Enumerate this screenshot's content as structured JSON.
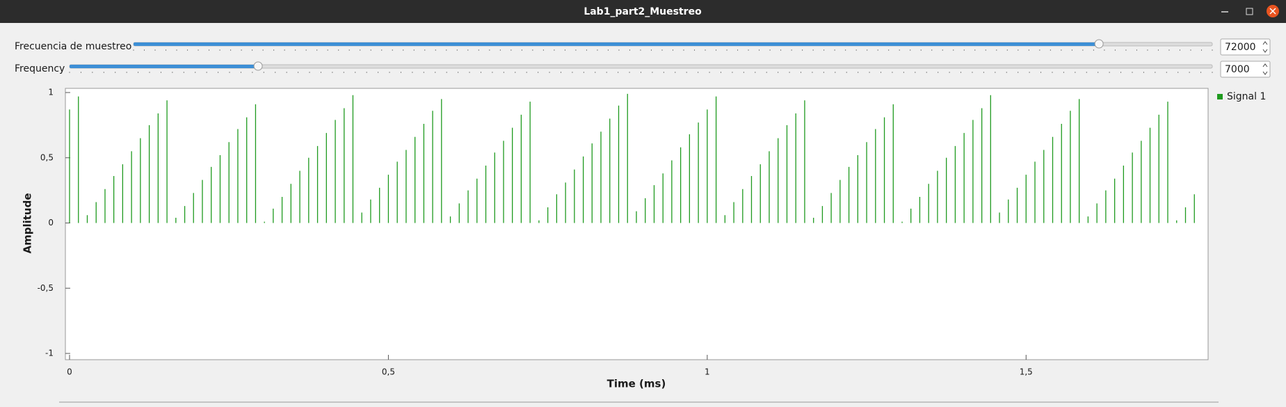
{
  "window": {
    "title": "Lab1_part2_Muestreo"
  },
  "controls": [
    {
      "label": "Frecuencia de muestreo",
      "value": 72000
    },
    {
      "label": "Frequency",
      "value": 7000
    }
  ],
  "chart_data": {
    "type": "stem",
    "xlabel": "Time (ms)",
    "ylabel": "Amplitude",
    "x": [
      0,
      0.0139,
      0.0278,
      0.0417,
      0.0556,
      0.0694,
      0.0833,
      0.0972,
      0.1111,
      0.125,
      0.1389,
      0.1528,
      0.1667,
      0.1806,
      0.1944,
      0.2083,
      0.2222,
      0.2361,
      0.25,
      0.2639,
      0.2778,
      0.2917,
      0.3056,
      0.3194,
      0.3333,
      0.3472,
      0.3611,
      0.375,
      0.3889,
      0.4028,
      0.4167,
      0.4306,
      0.4444,
      0.4583,
      0.4722,
      0.4861,
      0.5,
      0.5139,
      0.5278,
      0.5417,
      0.5556,
      0.5694,
      0.5833,
      0.5972,
      0.6111,
      0.625,
      0.6389,
      0.6528,
      0.6667,
      0.6806,
      0.6944,
      0.7083,
      0.7222,
      0.7361,
      0.75,
      0.7639,
      0.7778,
      0.7917,
      0.8056,
      0.8194,
      0.8333,
      0.8472,
      0.8611,
      0.875,
      0.8889,
      0.9028,
      0.9167,
      0.9306,
      0.9444,
      0.9583,
      0.9722,
      0.9861,
      1,
      1.0139,
      1.0278,
      1.0417,
      1.0556,
      1.0694,
      1.0833,
      1.0972,
      1.1111,
      1.125,
      1.1389,
      1.1528,
      1.1667,
      1.1806,
      1.1944,
      1.2083,
      1.2222,
      1.2361,
      1.25,
      1.2639,
      1.2778,
      1.2917,
      1.3056,
      1.3194,
      1.3333,
      1.3472,
      1.3611,
      1.375,
      1.3889,
      1.4028,
      1.4167,
      1.4306,
      1.4444,
      1.4583,
      1.4722,
      1.4861,
      1.5,
      1.5139,
      1.5278,
      1.5417,
      1.5556,
      1.5694,
      1.5833,
      1.5972,
      1.6111,
      1.625,
      1.6389,
      1.6528,
      1.6667,
      1.6806,
      1.6944,
      1.7083,
      1.7222,
      1.7361,
      1.75,
      1.7639
    ],
    "series": [
      {
        "name": "Signal 1",
        "color": "#1e9a1e",
        "values": [
          0.87,
          0.97,
          0.06,
          0.16,
          0.26,
          0.36,
          0.45,
          0.55,
          0.65,
          0.75,
          0.84,
          0.94,
          0.04,
          0.13,
          0.23,
          0.33,
          0.43,
          0.52,
          0.62,
          0.72,
          0.81,
          0.91,
          0.01,
          0.11,
          0.2,
          0.3,
          0.4,
          0.5,
          0.59,
          0.69,
          0.79,
          0.88,
          0.98,
          0.08,
          0.18,
          0.27,
          0.37,
          0.47,
          0.56,
          0.66,
          0.76,
          0.86,
          0.95,
          0.05,
          0.15,
          0.25,
          0.34,
          0.44,
          0.54,
          0.63,
          0.73,
          0.83,
          0.93,
          0.02,
          0.12,
          0.22,
          0.31,
          0.41,
          0.51,
          0.61,
          0.7,
          0.8,
          0.9,
          0.99,
          0.09,
          0.19,
          0.29,
          0.38,
          0.48,
          0.58,
          0.68,
          0.77,
          0.87,
          0.97,
          0.06,
          0.16,
          0.26,
          0.36,
          0.45,
          0.55,
          0.65,
          0.75,
          0.84,
          0.94,
          0.04,
          0.13,
          0.23,
          0.33,
          0.43,
          0.52,
          0.62,
          0.72,
          0.81,
          0.91,
          0.01,
          0.11,
          0.2,
          0.3,
          0.4,
          0.5,
          0.59,
          0.69,
          0.79,
          0.88,
          0.98,
          0.08,
          0.18,
          0.27,
          0.37,
          0.47,
          0.56,
          0.66,
          0.76,
          0.86,
          0.95,
          0.05,
          0.15,
          0.25,
          0.34,
          0.44,
          0.54,
          0.63,
          0.73,
          0.83,
          0.93,
          0.02,
          0.12,
          0.22
        ]
      }
    ],
    "xlim": [
      0,
      1.78
    ],
    "ylim": [
      -1,
      1
    ],
    "xticks": [
      0,
      {
        "value": 0.5,
        "label": "0,5"
      },
      1,
      {
        "value": 1.5,
        "label": "1,5"
      }
    ],
    "yticks": [
      -1,
      {
        "value": -0.5,
        "label": "-0,5"
      },
      0,
      {
        "value": 0.5,
        "label": "0,5"
      },
      1
    ],
    "legend": "upper right"
  }
}
